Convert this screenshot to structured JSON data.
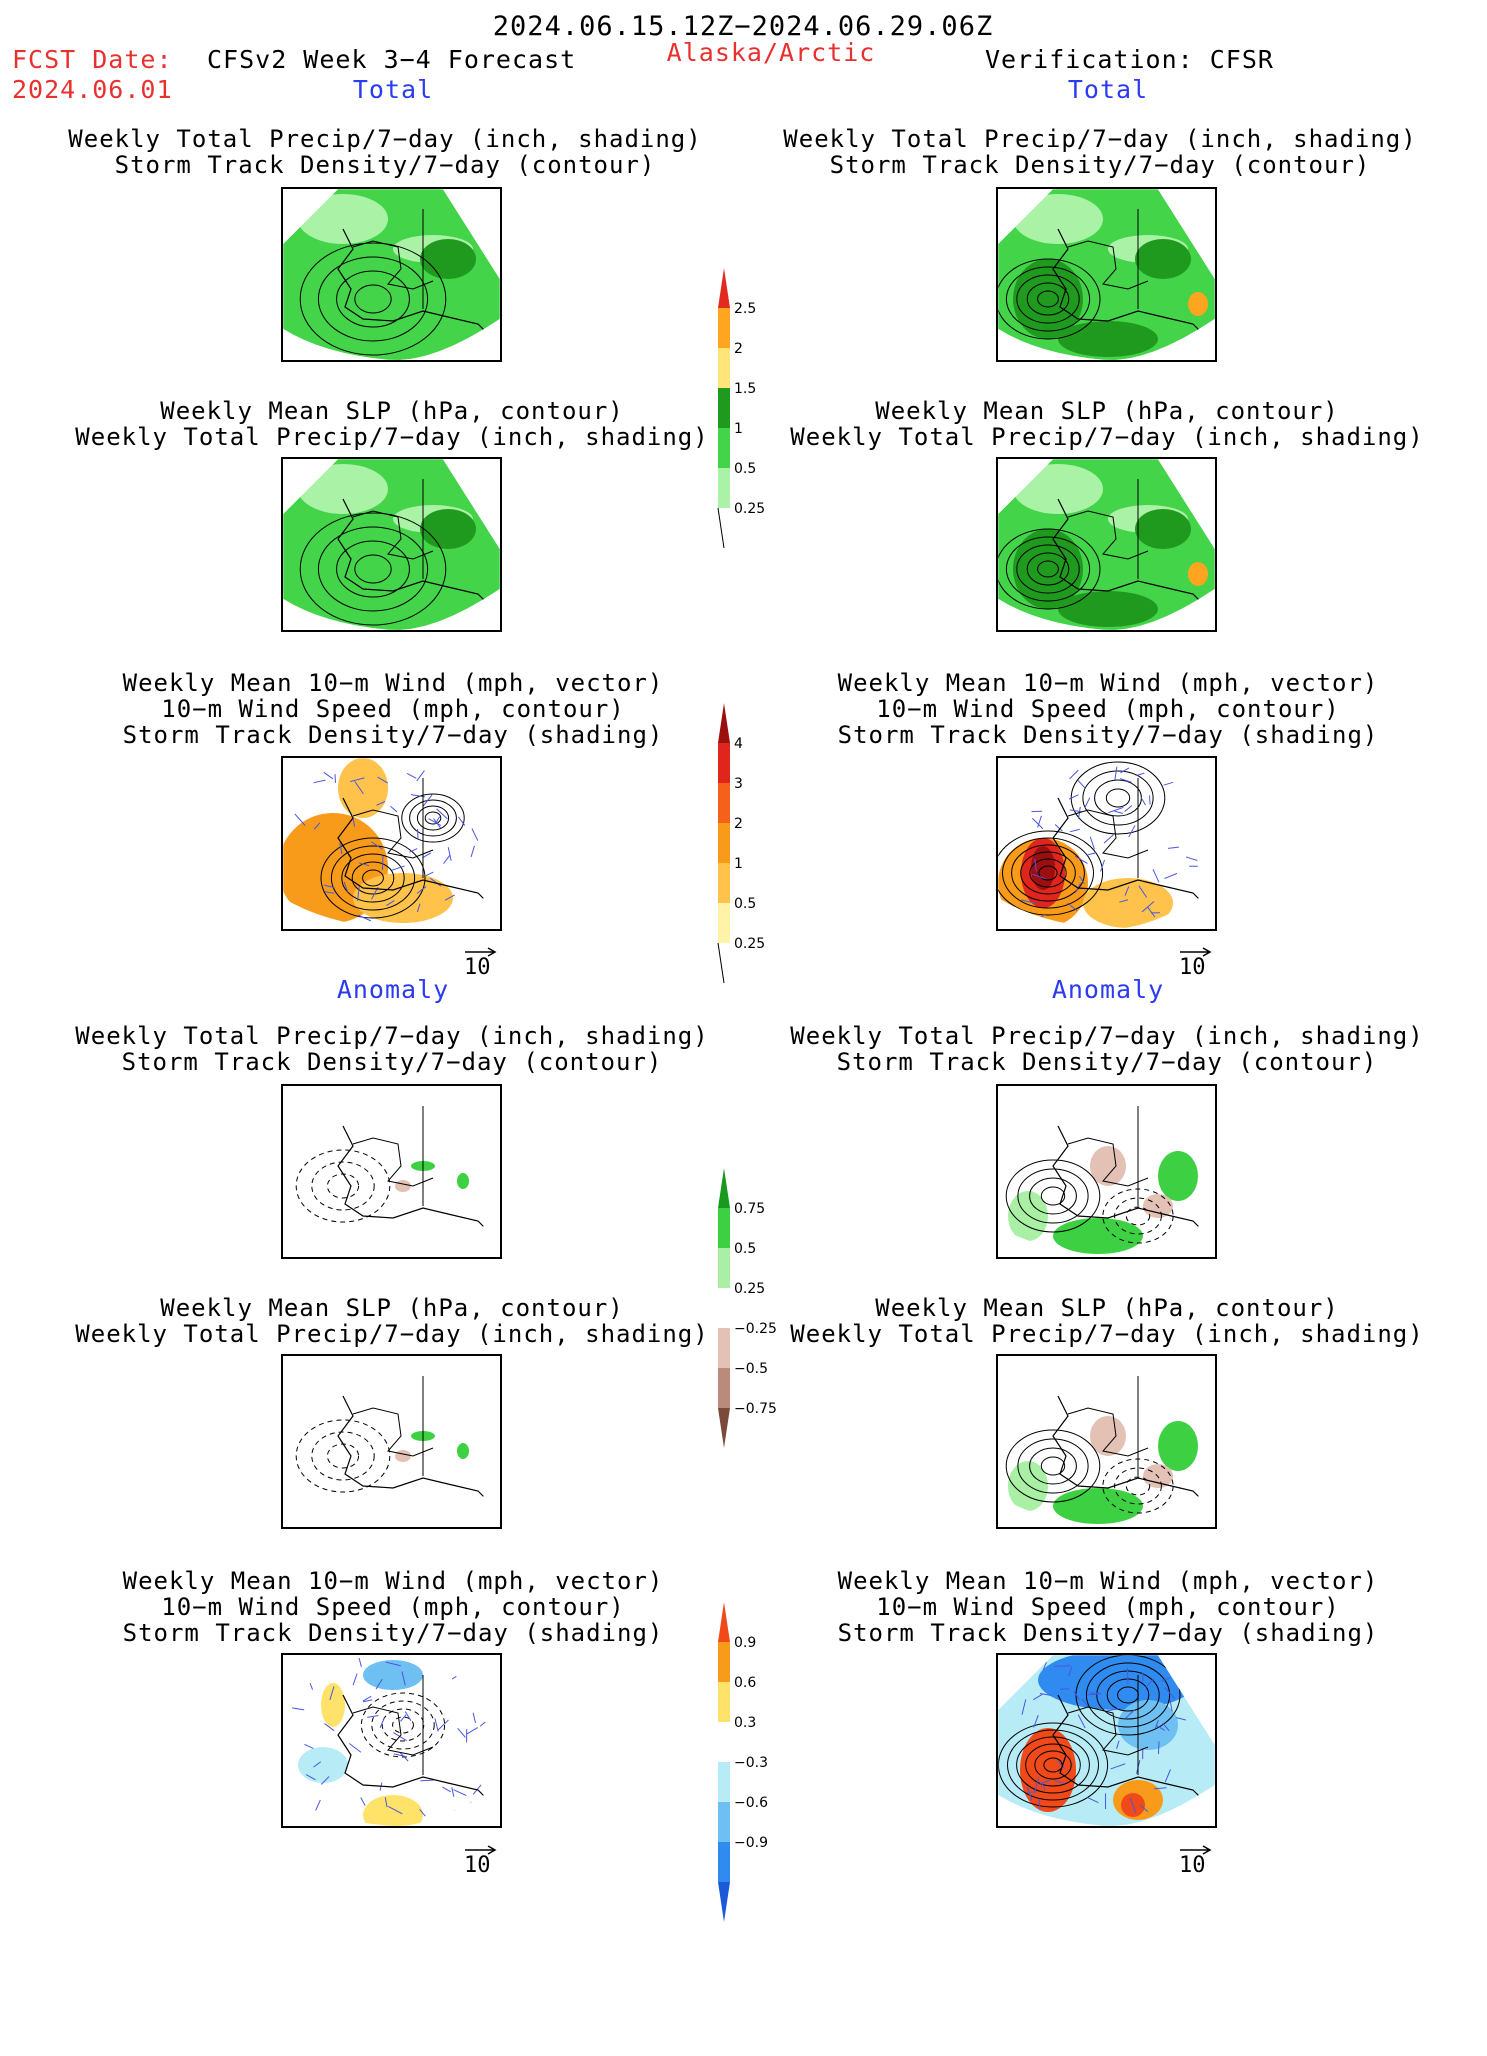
{
  "header": {
    "date_range": "2024.06.15.12Z−2024.06.29.06Z",
    "fcst_label": "FCST Date:",
    "fcst_date": "2024.06.01",
    "model_title": "CFSv2 Week 3−4 Forecast",
    "region": "Alaska/Arctic",
    "verification": "Verification: CFSR"
  },
  "sections": {
    "total_left": "Total",
    "total_right": "Total",
    "anomaly_left": "Anomaly",
    "anomaly_right": "Anomaly"
  },
  "panel_titles": {
    "precip_storm": [
      "Weekly Total Precip/7−day (inch, shading)",
      "Storm Track Density/7−day (contour)"
    ],
    "slp_precip": [
      "Weekly Mean SLP (hPa, contour)",
      "Weekly Total Precip/7−day (inch, shading)"
    ],
    "wind_storm": [
      "Weekly Mean 10−m Wind (mph, vector)",
      "10−m Wind Speed (mph, contour)",
      "Storm Track Density/7−day (shading)"
    ]
  },
  "vector_scale": "10",
  "colorbars": {
    "precip_total": {
      "labels": [
        "2.5",
        "2",
        "1.5",
        "1",
        "0.5",
        "0.25"
      ],
      "colors": [
        "#e22b1f",
        "#ffa51f",
        "#ffe57a",
        "#1f9a1f",
        "#44d44a",
        "#a9f2a6"
      ]
    },
    "storm_total": {
      "labels": [
        "4",
        "3",
        "2",
        "1",
        "0.5",
        "0.25"
      ],
      "colors": [
        "#9c0f0f",
        "#e0251d",
        "#f5601a",
        "#f99b1a",
        "#ffc24a",
        "#fff3a8"
      ]
    },
    "precip_anom": {
      "labels": [
        "0.75",
        "0.5",
        "0.25",
        "−0.25",
        "−0.5",
        "−0.75"
      ],
      "colors": [
        "#189a1e",
        "#3ed043",
        "#a9f0a4",
        "#ffffff",
        "#e3c1b5",
        "#bb8a7a",
        "#7a4a3a"
      ]
    },
    "storm_anom": {
      "labels": [
        "0.9",
        "0.6",
        "0.3",
        "−0.3",
        "−0.6",
        "−0.9"
      ],
      "colors": [
        "#f04a1a",
        "#f99b1a",
        "#ffe26a",
        "#ffffff",
        "#b7ecf7",
        "#6fc0f2",
        "#2f8bf0",
        "#1a5ad8"
      ]
    }
  },
  "maps": {
    "r1_left": "precip total with storm track contours",
    "r1_right": "precip total with storm track contours",
    "r2_left": "precip total with SLP contours",
    "r2_right": "precip total with SLP contours",
    "r3_left": "storm track total with wind vectors",
    "r3_right": "storm track total with wind vectors",
    "r4_left": "precip anomaly with storm track contours",
    "r4_right": "precip anomaly with storm track contours",
    "r5_left": "precip anomaly with SLP contours",
    "r5_right": "precip anomaly with SLP contours",
    "r6_left": "storm track anomaly with wind vectors",
    "r6_right": "storm track anomaly with wind vectors"
  }
}
